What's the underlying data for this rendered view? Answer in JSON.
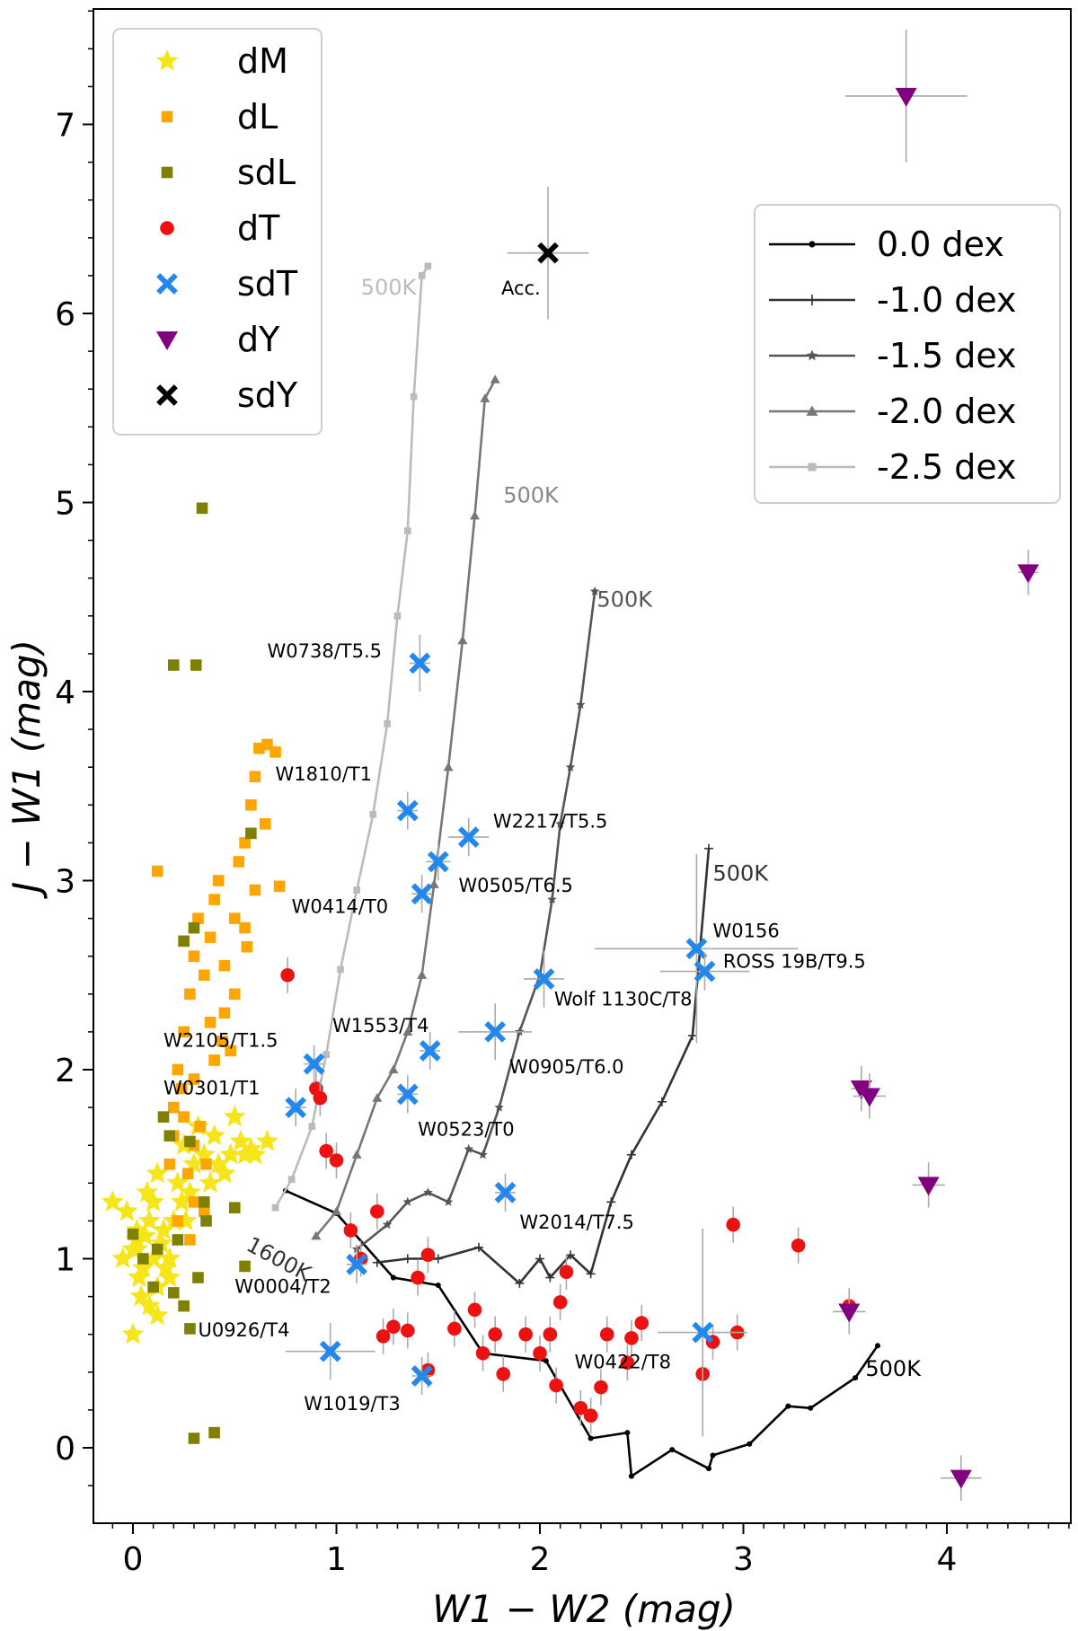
{
  "chart_data": {
    "type": "scatter",
    "xlabel": "W1 − W2 (mag)",
    "ylabel": "J − W1 (mag)",
    "xlim": [
      -0.2,
      4.6
    ],
    "ylim": [
      -0.4,
      7.6
    ],
    "xticks": [
      0,
      1,
      2,
      3,
      4
    ],
    "yticks": [
      0,
      1,
      2,
      3,
      4,
      5,
      6,
      7
    ],
    "legend_objects": {
      "placement": "top-left",
      "entries": [
        {
          "label": "dM",
          "marker": "star",
          "color": "#f5e51a"
        },
        {
          "label": "dL",
          "marker": "square",
          "color": "#ffa500"
        },
        {
          "label": "sdL",
          "marker": "square",
          "color": "#808000"
        },
        {
          "label": "dT",
          "marker": "circle",
          "color": "#ee1111"
        },
        {
          "label": "sdT",
          "marker": "x",
          "color": "#2288ee"
        },
        {
          "label": "dY",
          "marker": "triangle-down",
          "color": "#800080"
        },
        {
          "label": "sdY",
          "marker": "x",
          "color": "#000000"
        }
      ]
    },
    "legend_models": {
      "placement": "top-right",
      "entries": [
        {
          "label": "0.0 dex",
          "marker": "dot",
          "color": "#000000"
        },
        {
          "label": "-1.0 dex",
          "marker": "plus",
          "color": "#333333"
        },
        {
          "label": "-1.5 dex",
          "marker": "star",
          "color": "#555555"
        },
        {
          "label": "-2.0 dex",
          "marker": "triangle-up",
          "color": "#777777"
        },
        {
          "label": "-2.5 dex",
          "marker": "square",
          "color": "#bbbbbb"
        }
      ]
    },
    "model_series": [
      {
        "name": "0.0 dex",
        "color": "#000000",
        "marker": "dot",
        "x": [
          0.75,
          1.0,
          1.28,
          1.5,
          1.72,
          2.03,
          2.25,
          2.43,
          2.45,
          2.65,
          2.83,
          2.85,
          3.03,
          3.22,
          3.33,
          3.55,
          3.66
        ],
        "y": [
          1.36,
          1.24,
          0.9,
          0.86,
          0.5,
          0.46,
          0.05,
          0.08,
          -0.15,
          -0.01,
          -0.11,
          -0.04,
          0.02,
          0.22,
          0.21,
          0.37,
          0.54
        ]
      },
      {
        "name": "-1.0 dex",
        "color": "#333333",
        "marker": "plus",
        "x": [
          1.2,
          1.35,
          1.5,
          1.7,
          1.9,
          2.0,
          2.05,
          2.15,
          2.25,
          2.35,
          2.45,
          2.6,
          2.75,
          2.83
        ],
        "y": [
          0.98,
          1.0,
          1.0,
          1.06,
          0.87,
          1.0,
          0.9,
          1.02,
          0.92,
          1.3,
          1.55,
          1.83,
          2.18,
          3.17
        ]
      },
      {
        "name": "-1.5 dex",
        "color": "#555555",
        "marker": "star",
        "x": [
          1.1,
          1.25,
          1.35,
          1.45,
          1.55,
          1.65,
          1.72,
          1.8,
          1.9,
          2.0,
          2.06,
          2.1,
          2.15,
          2.2,
          2.27
        ],
        "y": [
          1.05,
          1.18,
          1.3,
          1.35,
          1.3,
          1.58,
          1.55,
          1.8,
          2.2,
          2.5,
          2.9,
          3.3,
          3.6,
          3.93,
          4.53
        ]
      },
      {
        "name": "-2.0 dex",
        "color": "#777777",
        "marker": "triangle-up",
        "x": [
          0.9,
          1.0,
          1.1,
          1.2,
          1.28,
          1.35,
          1.42,
          1.48,
          1.55,
          1.62,
          1.68,
          1.73,
          1.78
        ],
        "y": [
          1.12,
          1.25,
          1.55,
          1.85,
          2.0,
          2.2,
          2.5,
          2.98,
          3.6,
          4.27,
          4.93,
          5.55,
          5.65
        ]
      },
      {
        "name": "-2.5 dex",
        "color": "#bbbbbb",
        "marker": "square",
        "x": [
          0.7,
          0.78,
          0.88,
          0.95,
          1.02,
          1.1,
          1.18,
          1.25,
          1.3,
          1.35,
          1.38,
          1.42,
          1.45
        ],
        "y": [
          1.27,
          1.42,
          1.7,
          2.08,
          2.53,
          2.95,
          3.35,
          3.83,
          4.4,
          4.85,
          5.56,
          6.2,
          6.25
        ]
      }
    ],
    "model_labels": [
      {
        "text": "500K",
        "x": 1.12,
        "y": 6.1,
        "color": "#bbbbbb"
      },
      {
        "text": "500K",
        "x": 1.82,
        "y": 5.0,
        "color": "#888888"
      },
      {
        "text": "500K",
        "x": 2.28,
        "y": 4.45,
        "color": "#555555"
      },
      {
        "text": "500K",
        "x": 2.85,
        "y": 3.0,
        "color": "#333333"
      },
      {
        "text": "500K",
        "x": 3.6,
        "y": 0.38,
        "color": "#000000"
      },
      {
        "text": "1600K",
        "x": 0.55,
        "y": 1.05,
        "color": "#333333"
      }
    ],
    "series": [
      {
        "name": "dM",
        "marker": "star",
        "color": "#f5e51a",
        "x": [
          0.0,
          0.02,
          0.05,
          0.08,
          0.1,
          0.12,
          0.15,
          0.03,
          -0.03,
          0.07,
          0.18,
          0.22,
          0.0,
          -0.1,
          0.12,
          0.25,
          0.3,
          0.35,
          0.45,
          0.5,
          0.55,
          0.6,
          0.4,
          0.32,
          0.28,
          0.02,
          0.06,
          0.14,
          0.2,
          0.1,
          0.04,
          -0.05,
          0.16,
          0.24,
          0.38,
          0.42,
          0.48,
          0.53,
          0.58,
          0.66,
          0.08,
          0.12,
          0.02,
          0.18,
          0.26
        ],
        "y": [
          1.05,
          1.1,
          0.95,
          1.2,
          1.0,
          0.85,
          1.15,
          0.9,
          1.25,
          1.35,
          0.9,
          1.4,
          0.6,
          1.3,
          0.7,
          1.6,
          1.5,
          1.55,
          1.45,
          1.75,
          1.55,
          1.55,
          1.65,
          1.7,
          1.35,
          1.05,
          1.12,
          1.08,
          1.2,
          1.3,
          0.8,
          1.0,
          0.95,
          1.3,
          1.4,
          1.5,
          1.55,
          1.62,
          1.58,
          1.62,
          0.75,
          1.45,
          1.15,
          1.0,
          1.2
        ]
      },
      {
        "name": "dL",
        "marker": "square",
        "color": "#ffa500",
        "x": [
          0.2,
          0.22,
          0.25,
          0.28,
          0.3,
          0.32,
          0.35,
          0.38,
          0.4,
          0.42,
          0.45,
          0.48,
          0.5,
          0.52,
          0.55,
          0.58,
          0.6,
          0.62,
          0.66,
          0.7,
          0.3,
          0.33,
          0.36,
          0.27,
          0.24,
          0.4,
          0.44,
          0.5,
          0.56,
          0.6,
          0.65,
          0.3,
          0.35,
          0.28,
          0.22,
          0.18,
          0.2,
          0.25,
          0.3,
          0.38,
          0.45,
          0.55,
          0.72,
          0.12
        ],
        "y": [
          1.8,
          2.0,
          2.2,
          2.4,
          2.6,
          2.8,
          2.5,
          2.7,
          2.9,
          3.0,
          2.3,
          2.1,
          2.8,
          3.1,
          3.2,
          3.4,
          3.55,
          3.7,
          3.72,
          3.68,
          1.6,
          1.7,
          1.5,
          1.45,
          1.9,
          2.05,
          2.15,
          2.4,
          2.65,
          2.95,
          3.3,
          1.3,
          1.25,
          1.1,
          1.2,
          1.5,
          1.65,
          1.75,
          1.95,
          2.25,
          2.55,
          2.75,
          2.97,
          3.05
        ]
      },
      {
        "name": "sdL",
        "marker": "square",
        "color": "#808000",
        "x": [
          0.34,
          0.2,
          0.31,
          0.58,
          0.3,
          0.25,
          0.15,
          0.18,
          0.28,
          0.35,
          0.22,
          0.12,
          0.05,
          0.0,
          0.1,
          0.2,
          0.25,
          0.55,
          0.5,
          0.36,
          0.4,
          0.3,
          0.28,
          0.32
        ],
        "y": [
          4.97,
          4.14,
          4.14,
          3.25,
          2.75,
          2.68,
          1.75,
          1.65,
          1.62,
          1.3,
          1.1,
          1.05,
          1.0,
          1.13,
          0.85,
          0.82,
          0.75,
          0.96,
          1.27,
          1.2,
          0.08,
          0.05,
          0.63,
          0.9
        ]
      },
      {
        "name": "dT",
        "marker": "circle",
        "color": "#ee1111",
        "x": [
          0.76,
          0.9,
          0.92,
          0.95,
          1.0,
          1.07,
          1.12,
          1.2,
          1.23,
          1.28,
          1.35,
          1.4,
          1.45,
          1.45,
          1.58,
          1.68,
          1.72,
          1.78,
          1.82,
          1.93,
          2.0,
          2.05,
          2.08,
          2.1,
          2.13,
          2.2,
          2.25,
          2.3,
          2.33,
          2.43,
          2.45,
          2.5,
          2.8,
          2.85,
          2.95,
          2.97,
          3.27,
          3.52
        ],
        "y": [
          2.5,
          1.9,
          1.85,
          1.57,
          1.52,
          1.15,
          1.0,
          1.25,
          0.59,
          0.64,
          0.62,
          0.9,
          1.02,
          0.41,
          0.63,
          0.73,
          0.5,
          0.6,
          0.39,
          0.6,
          0.5,
          0.6,
          0.33,
          0.77,
          0.93,
          0.21,
          0.17,
          0.32,
          0.6,
          0.45,
          0.58,
          0.66,
          0.39,
          0.56,
          1.18,
          0.61,
          1.07,
          0.75
        ]
      },
      {
        "name": "sdT",
        "marker": "x",
        "color": "#2288ee",
        "x": [
          1.41,
          1.35,
          1.65,
          1.5,
          1.42,
          2.02,
          2.77,
          2.81,
          1.78,
          0.89,
          1.46,
          0.8,
          1.35,
          1.83,
          1.1,
          0.97,
          1.42,
          2.8
        ],
        "y": [
          4.15,
          3.37,
          3.23,
          3.1,
          2.93,
          2.48,
          2.64,
          2.52,
          2.2,
          2.03,
          2.1,
          1.8,
          1.87,
          1.35,
          0.97,
          0.51,
          0.38,
          0.61
        ],
        "xerr": [
          0.05,
          0.05,
          0.1,
          0.06,
          0.05,
          0.1,
          0.5,
          0.22,
          0.18,
          0.05,
          0.05,
          0.05,
          0.05,
          0.05,
          0.05,
          0.22,
          0.05,
          0.22
        ],
        "yerr": [
          0.15,
          0.1,
          0.1,
          0.1,
          0.1,
          0.15,
          0.5,
          0.1,
          0.15,
          0.1,
          0.1,
          0.1,
          0.1,
          0.1,
          0.1,
          0.15,
          0.1,
          0.55
        ]
      },
      {
        "name": "dY",
        "marker": "triangle-down",
        "color": "#800080",
        "x": [
          3.8,
          4.4,
          3.58,
          3.62,
          3.91,
          3.52,
          4.07
        ],
        "y": [
          7.15,
          4.63,
          1.9,
          1.86,
          1.39,
          0.72,
          -0.16
        ],
        "xerr": [
          0.3,
          0.05,
          0.05,
          0.08,
          0.08,
          0.08,
          0.1
        ],
        "yerr": [
          0.35,
          0.12,
          0.12,
          0.12,
          0.12,
          0.12,
          0.12
        ]
      },
      {
        "name": "sdY",
        "marker": "x",
        "color": "#000000",
        "x": [
          2.04
        ],
        "y": [
          6.32
        ],
        "xerr": [
          0.2
        ],
        "yerr": [
          0.35
        ]
      }
    ],
    "annotations": [
      {
        "text": "W0738/T5.5",
        "x": 0.66,
        "y": 4.18
      },
      {
        "text": "W1810/T1",
        "x": 0.7,
        "y": 3.53
      },
      {
        "text": "W2217/T5.5",
        "x": 1.77,
        "y": 3.28
      },
      {
        "text": "W0505/T6.5",
        "x": 1.6,
        "y": 2.94
      },
      {
        "text": "W0414/T0",
        "x": 0.78,
        "y": 2.83
      },
      {
        "text": "W0156",
        "x": 2.85,
        "y": 2.7
      },
      {
        "text": "ROSS 19B/T9.5",
        "x": 2.9,
        "y": 2.54
      },
      {
        "text": "Wolf 1130C/T8",
        "x": 2.07,
        "y": 2.34
      },
      {
        "text": "W1553/T4",
        "x": 0.98,
        "y": 2.2
      },
      {
        "text": "W2105/T1.5",
        "x": 0.15,
        "y": 2.12
      },
      {
        "text": "W0905/T6.0",
        "x": 1.85,
        "y": 1.98
      },
      {
        "text": "W0301/T1",
        "x": 0.15,
        "y": 1.87
      },
      {
        "text": "W0523/T0",
        "x": 1.4,
        "y": 1.65
      },
      {
        "text": "W2014/T7.5",
        "x": 1.9,
        "y": 1.16
      },
      {
        "text": "W0004/T2",
        "x": 0.5,
        "y": 0.82
      },
      {
        "text": "U0926/T4",
        "x": 0.32,
        "y": 0.59
      },
      {
        "text": "W0422/T8",
        "x": 2.17,
        "y": 0.42
      },
      {
        "text": "W1019/T3",
        "x": 0.84,
        "y": 0.2
      },
      {
        "text": "Acc.",
        "x": 1.81,
        "y": 6.1
      }
    ]
  }
}
